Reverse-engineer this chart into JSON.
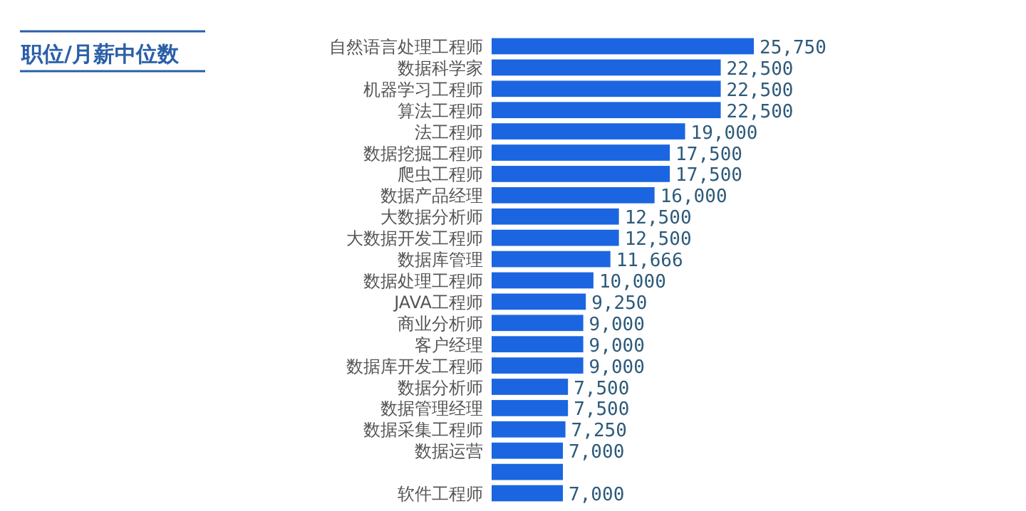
{
  "chart_data": {
    "type": "bar",
    "orientation": "horizontal",
    "title": "职位/月薪中位数",
    "categories": [
      "自然语言处理工程师",
      "数据科学家",
      "机器学习工程师",
      "算法工程师",
      "法工程师",
      "数据挖掘工程师",
      "爬虫工程师",
      "数据产品经理",
      "大数据分析师",
      "大数据开发工程师",
      "数据库管理",
      "数据处理工程师",
      "JAVA工程师",
      "商业分析师",
      "客户经理",
      "数据库开发工程师",
      "数据分析师",
      "数据管理经理",
      "数据采集工程师",
      "数据运营",
      null,
      "软件工程师"
    ],
    "values": [
      25750,
      22500,
      22500,
      22500,
      19000,
      17500,
      17500,
      16000,
      12500,
      12500,
      11666,
      10000,
      9250,
      9000,
      9000,
      9000,
      7500,
      7500,
      7250,
      7000,
      7000,
      7000
    ],
    "value_labels": [
      "25,750",
      "22,500",
      "22,500",
      "22,500",
      "19,000",
      "17,500",
      "17,500",
      "16,000",
      "12,500",
      "12,500",
      "11,666",
      "10,000",
      "9,250",
      "9,000",
      "9,000",
      "9,000",
      "7,500",
      "7,500",
      "7,250",
      "7,000",
      null,
      "7,000"
    ],
    "color": "#1b66e0"
  }
}
